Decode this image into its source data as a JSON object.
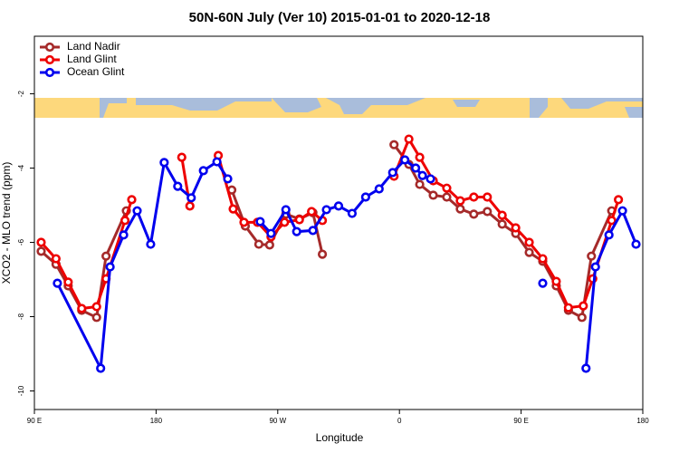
{
  "chart_data": {
    "type": "line",
    "title": "50N-60N July (Ver 10)   2015-01-01 to 2020-12-18",
    "x_label": "Longitude",
    "y_label": "XCO2 - MLO trend (ppm)",
    "xlim": [
      -270,
      180
    ],
    "ylim": [
      -10.5,
      -0.45
    ],
    "xticks": [
      {
        "value": -270,
        "label": "90 E"
      },
      {
        "value": -180,
        "label": "180"
      },
      {
        "value": -90,
        "label": "90 W"
      },
      0,
      {
        "value": 90,
        "label": "90 E"
      },
      180
    ],
    "yticks": [
      -2,
      -4,
      -6,
      -8,
      -10
    ],
    "legend": "top-left",
    "series": [
      {
        "name": "Land Nadir",
        "color": "#a52a2a",
        "x": [
          -265,
          -254,
          -245,
          -235,
          -224,
          -217,
          -202,
          null,
          -124,
          -114,
          -104,
          -96,
          -84,
          -74,
          -64,
          -57,
          null,
          -4,
          7,
          15,
          25,
          35,
          45,
          55,
          65,
          76,
          86,
          96,
          106,
          116,
          125,
          135,
          142,
          157
        ],
        "values": [
          -6.24,
          -6.59,
          -7.17,
          -7.83,
          -8.02,
          -6.37,
          -5.15,
          null,
          -4.59,
          -5.56,
          -6.05,
          -6.07,
          -5.24,
          -5.37,
          -5.2,
          -6.32,
          null,
          -3.37,
          -3.9,
          -4.44,
          -4.73,
          -4.78,
          -5.1,
          -5.24,
          -5.17,
          -5.51,
          -5.76,
          -6.27,
          -6.51,
          -7.17,
          -7.83,
          -8.02,
          -6.37,
          -5.15
        ]
      },
      {
        "name": "Land Glint",
        "color": "#ee0000",
        "x": [
          -265,
          -254,
          -245,
          -235,
          -224,
          -217,
          -203,
          -198,
          null,
          -161,
          -155,
          null,
          -134,
          -123,
          -115,
          -105,
          -95,
          -85,
          -74,
          -65,
          -57,
          null,
          -4,
          7,
          15,
          25,
          35,
          45,
          55,
          65,
          76,
          86,
          96,
          106,
          116,
          125,
          136,
          143,
          157,
          162
        ],
        "values": [
          -6.0,
          -6.44,
          -7.07,
          -7.78,
          -7.73,
          -6.98,
          -5.41,
          -4.85,
          null,
          -3.71,
          -5.02,
          null,
          -3.66,
          -5.1,
          -5.46,
          -5.46,
          -5.85,
          -5.46,
          -5.39,
          -5.17,
          -5.41,
          null,
          -4.22,
          -3.22,
          -3.71,
          -4.34,
          -4.54,
          -4.88,
          -4.78,
          -4.78,
          -5.27,
          -5.61,
          -6.0,
          -6.44,
          -7.05,
          -7.76,
          -7.71,
          -6.98,
          -5.41,
          -4.85
        ]
      },
      {
        "name": "Ocean Glint",
        "color": "#0000ee",
        "x": [
          -253,
          -221,
          -214,
          -204,
          -194,
          -184,
          -174,
          -164,
          -154,
          -145,
          -135,
          -127,
          null,
          -103,
          -95,
          -84,
          -76,
          -64,
          -54,
          -45,
          -35,
          -25,
          -15,
          -5,
          4,
          12,
          17,
          23,
          null,
          106,
          null,
          138,
          145,
          155,
          165,
          175
        ],
        "values": [
          -7.1,
          -9.39,
          -6.66,
          -5.8,
          -5.15,
          -6.05,
          -3.85,
          -4.49,
          -4.8,
          -4.07,
          -3.83,
          -4.29,
          null,
          -5.44,
          -5.76,
          -5.12,
          -5.71,
          -5.68,
          -5.12,
          -5.02,
          -5.22,
          -4.78,
          -4.56,
          -4.12,
          -3.78,
          -4.0,
          -4.2,
          -4.29,
          null,
          -7.1,
          null,
          -9.39,
          -6.66,
          -5.8,
          -5.15,
          -6.05
        ]
      }
    ]
  }
}
